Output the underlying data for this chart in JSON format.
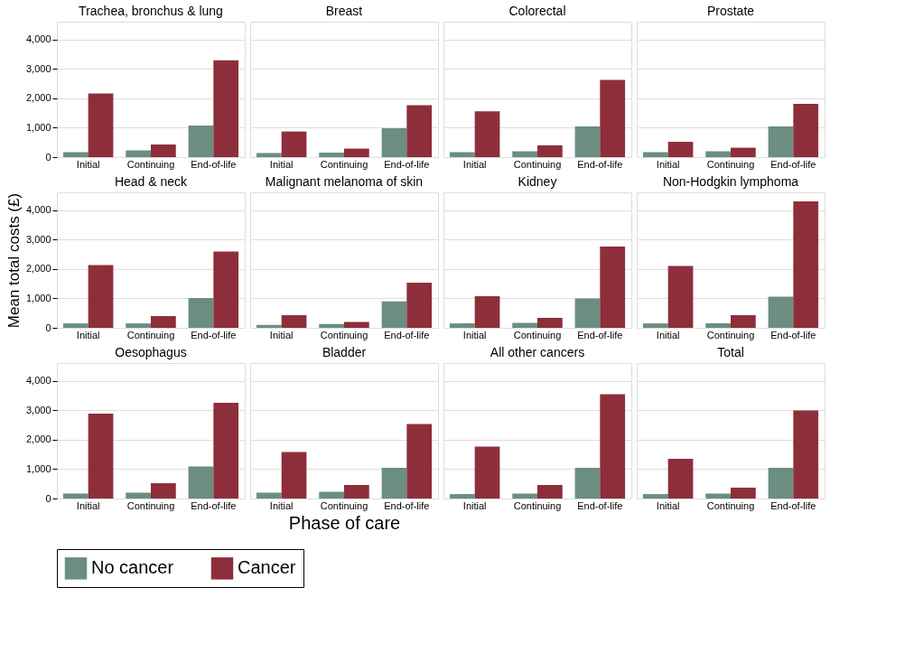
{
  "chart_data": [
    {
      "type": "bar",
      "title": "Trachea, bronchus & lung",
      "categories": [
        "Initial",
        "Continuing",
        "End-of-life"
      ],
      "series": [
        {
          "name": "No cancer",
          "color": "#6b8e80",
          "values": [
            170,
            230,
            1070
          ]
        },
        {
          "name": "Cancer",
          "color": "#8e2e3b",
          "values": [
            2160,
            430,
            3290
          ]
        }
      ],
      "ylim": [
        0,
        4600
      ],
      "yticks": [
        0,
        {
          "value": 1000,
          "label": "1,000"
        },
        {
          "value": 2000,
          "label": "2,000"
        },
        {
          "value": 3000,
          "label": "3,000"
        },
        {
          "value": 4000,
          "label": "4,000"
        }
      ],
      "grid": "y",
      "legend": "bottom"
    },
    {
      "type": "bar",
      "title": "Breast",
      "categories": [
        "Initial",
        "Continuing",
        "End-of-life"
      ],
      "series": [
        {
          "name": "No cancer",
          "color": "#6b8e80",
          "values": [
            140,
            150,
            980
          ]
        },
        {
          "name": "Cancer",
          "color": "#8e2e3b",
          "values": [
            870,
            290,
            1760
          ]
        }
      ],
      "ylim": [
        0,
        4600
      ],
      "yticks": [
        0,
        {
          "value": 1000,
          "label": "1,000"
        },
        {
          "value": 2000,
          "label": "2,000"
        },
        {
          "value": 3000,
          "label": "3,000"
        },
        {
          "value": 4000,
          "label": "4,000"
        }
      ],
      "grid": "y",
      "tick_labels": "x"
    },
    {
      "type": "bar",
      "title": "Colorectal",
      "categories": [
        "Initial",
        "Continuing",
        "End-of-life"
      ],
      "series": [
        {
          "name": "No cancer",
          "color": "#6b8e80",
          "values": [
            170,
            200,
            1040
          ]
        },
        {
          "name": "Cancer",
          "color": "#8e2e3b",
          "values": [
            1560,
            400,
            2620
          ]
        }
      ],
      "ylim": [
        0,
        4600
      ],
      "yticks": [
        0,
        {
          "value": 1000,
          "label": "1,000"
        },
        {
          "value": 2000,
          "label": "2,000"
        },
        {
          "value": 3000,
          "label": "3,000"
        },
        {
          "value": 4000,
          "label": "4,000"
        }
      ],
      "grid": "y",
      "tick_labels": "x"
    },
    {
      "type": "bar",
      "title": "Prostate",
      "categories": [
        "Initial",
        "Continuing",
        "End-of-life"
      ],
      "series": [
        {
          "name": "No cancer",
          "color": "#6b8e80",
          "values": [
            170,
            200,
            1040
          ]
        },
        {
          "name": "Cancer",
          "color": "#8e2e3b",
          "values": [
            520,
            320,
            1810
          ]
        }
      ],
      "ylim": [
        0,
        4600
      ],
      "yticks": [
        0,
        {
          "value": 1000,
          "label": "1,000"
        },
        {
          "value": 2000,
          "label": "2,000"
        },
        {
          "value": 3000,
          "label": "3,000"
        },
        {
          "value": 4000,
          "label": "4,000"
        }
      ],
      "grid": "y",
      "tick_labels": "x"
    },
    {
      "type": "bar",
      "title": "Head & neck",
      "ylabel": "Mean total costs (£)",
      "categories": [
        "Initial",
        "Continuing",
        "End-of-life"
      ],
      "series": [
        {
          "name": "No cancer",
          "color": "#6b8e80",
          "values": [
            150,
            150,
            1010
          ]
        },
        {
          "name": "Cancer",
          "color": "#8e2e3b",
          "values": [
            2130,
            400,
            2590
          ]
        }
      ],
      "ylim": [
        0,
        4600
      ],
      "yticks": [
        0,
        {
          "value": 1000,
          "label": "1,000"
        },
        {
          "value": 2000,
          "label": "2,000"
        },
        {
          "value": 3000,
          "label": "3,000"
        },
        {
          "value": 4000,
          "label": "4,000"
        }
      ],
      "grid": "y"
    },
    {
      "type": "bar",
      "title": "Malignant melanoma of skin",
      "categories": [
        "Initial",
        "Continuing",
        "End-of-life"
      ],
      "series": [
        {
          "name": "No cancer",
          "color": "#6b8e80",
          "values": [
            100,
            130,
            900
          ]
        },
        {
          "name": "Cancer",
          "color": "#8e2e3b",
          "values": [
            430,
            200,
            1530
          ]
        }
      ],
      "ylim": [
        0,
        4600
      ],
      "yticks": [
        0,
        {
          "value": 1000,
          "label": "1,000"
        },
        {
          "value": 2000,
          "label": "2,000"
        },
        {
          "value": 3000,
          "label": "3,000"
        },
        {
          "value": 4000,
          "label": "4,000"
        }
      ],
      "grid": "y",
      "tick_labels": "x"
    },
    {
      "type": "bar",
      "title": "Kidney",
      "categories": [
        "Initial",
        "Continuing",
        "End-of-life"
      ],
      "series": [
        {
          "name": "No cancer",
          "color": "#6b8e80",
          "values": [
            150,
            170,
            1000
          ]
        },
        {
          "name": "Cancer",
          "color": "#8e2e3b",
          "values": [
            1070,
            340,
            2760
          ]
        }
      ],
      "ylim": [
        0,
        4600
      ],
      "yticks": [
        0,
        {
          "value": 1000,
          "label": "1,000"
        },
        {
          "value": 2000,
          "label": "2,000"
        },
        {
          "value": 3000,
          "label": "3,000"
        },
        {
          "value": 4000,
          "label": "4,000"
        }
      ],
      "grid": "y",
      "tick_labels": "x"
    },
    {
      "type": "bar",
      "title": "Non-Hodgkin lymphoma",
      "categories": [
        "Initial",
        "Continuing",
        "End-of-life"
      ],
      "series": [
        {
          "name": "No cancer",
          "color": "#6b8e80",
          "values": [
            150,
            150,
            1060
          ]
        },
        {
          "name": "Cancer",
          "color": "#8e2e3b",
          "values": [
            2100,
            430,
            4290
          ]
        }
      ],
      "ylim": [
        0,
        4600
      ],
      "yticks": [
        0,
        {
          "value": 1000,
          "label": "1,000"
        },
        {
          "value": 2000,
          "label": "2,000"
        },
        {
          "value": 3000,
          "label": "3,000"
        },
        {
          "value": 4000,
          "label": "4,000"
        }
      ],
      "grid": "y",
      "tick_labels": "x"
    },
    {
      "type": "bar",
      "title": "Oesophagus",
      "categories": [
        "Initial",
        "Continuing",
        "End-of-life"
      ],
      "series": [
        {
          "name": "No cancer",
          "color": "#6b8e80",
          "values": [
            170,
            200,
            1090
          ]
        },
        {
          "name": "Cancer",
          "color": "#8e2e3b",
          "values": [
            2880,
            520,
            3250
          ]
        }
      ],
      "ylim": [
        0,
        4600
      ],
      "yticks": [
        0,
        {
          "value": 1000,
          "label": "1,000"
        },
        {
          "value": 2000,
          "label": "2,000"
        },
        {
          "value": 3000,
          "label": "3,000"
        },
        {
          "value": 4000,
          "label": "4,000"
        }
      ],
      "grid": "y"
    },
    {
      "type": "bar",
      "title": "Bladder",
      "xlabel": "Phase of care",
      "categories": [
        "Initial",
        "Continuing",
        "End-of-life"
      ],
      "series": [
        {
          "name": "No cancer",
          "color": "#6b8e80",
          "values": [
            200,
            230,
            1040
          ]
        },
        {
          "name": "Cancer",
          "color": "#8e2e3b",
          "values": [
            1580,
            460,
            2530
          ]
        }
      ],
      "ylim": [
        0,
        4600
      ],
      "yticks": [
        0,
        {
          "value": 1000,
          "label": "1,000"
        },
        {
          "value": 2000,
          "label": "2,000"
        },
        {
          "value": 3000,
          "label": "3,000"
        },
        {
          "value": 4000,
          "label": "4,000"
        }
      ],
      "grid": "y",
      "tick_labels": "x"
    },
    {
      "type": "bar",
      "title": "All other cancers",
      "categories": [
        "Initial",
        "Continuing",
        "End-of-life"
      ],
      "series": [
        {
          "name": "No cancer",
          "color": "#6b8e80",
          "values": [
            150,
            170,
            1040
          ]
        },
        {
          "name": "Cancer",
          "color": "#8e2e3b",
          "values": [
            1760,
            460,
            3540
          ]
        }
      ],
      "ylim": [
        0,
        4600
      ],
      "yticks": [
        0,
        {
          "value": 1000,
          "label": "1,000"
        },
        {
          "value": 2000,
          "label": "2,000"
        },
        {
          "value": 3000,
          "label": "3,000"
        },
        {
          "value": 4000,
          "label": "4,000"
        }
      ],
      "grid": "y",
      "tick_labels": "x"
    },
    {
      "type": "bar",
      "title": "Total",
      "categories": [
        "Initial",
        "Continuing",
        "End-of-life"
      ],
      "series": [
        {
          "name": "No cancer",
          "color": "#6b8e80",
          "values": [
            150,
            170,
            1040
          ]
        },
        {
          "name": "Cancer",
          "color": "#8e2e3b",
          "values": [
            1350,
            370,
            2990
          ]
        }
      ],
      "ylim": [
        0,
        4600
      ],
      "yticks": [
        0,
        {
          "value": 1000,
          "label": "1,000"
        },
        {
          "value": 2000,
          "label": "2,000"
        },
        {
          "value": 3000,
          "label": "3,000"
        },
        {
          "value": 4000,
          "label": "4,000"
        }
      ],
      "grid": "y",
      "tick_labels": "x"
    }
  ]
}
